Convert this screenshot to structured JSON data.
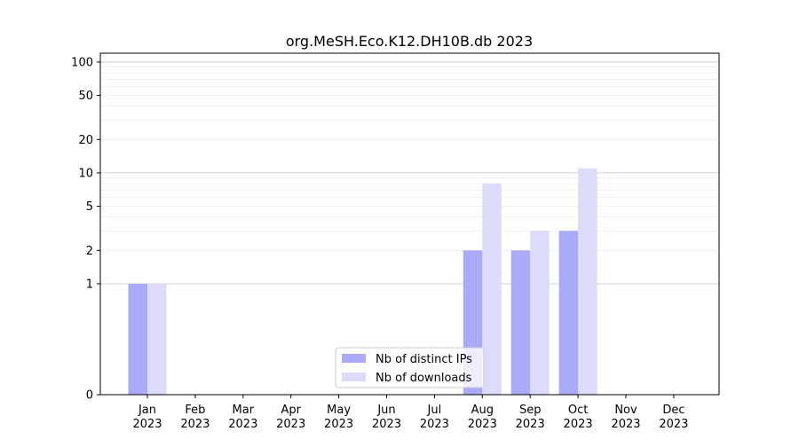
{
  "chart_data": {
    "type": "bar",
    "title": "org.MeSH.Eco.K12.DH10B.db 2023",
    "xlabel": "",
    "ylabel": "",
    "y_scale": "symlog",
    "ylim": [
      0,
      120
    ],
    "y_ticks": [
      0,
      1,
      2,
      5,
      10,
      20,
      50,
      100
    ],
    "y_tick_labels": [
      "0",
      "1",
      "2",
      "5",
      "10",
      "20",
      "50",
      "100"
    ],
    "categories": [
      "Jan\n2023",
      "Feb\n2023",
      "Mar\n2023",
      "Apr\n2023",
      "May\n2023",
      "Jun\n2023",
      "Jul\n2023",
      "Aug\n2023",
      "Sep\n2023",
      "Oct\n2023",
      "Nov\n2023",
      "Dec\n2023"
    ],
    "series": [
      {
        "name": "Nb of distinct IPs",
        "color": "#aaaaf8",
        "values": [
          1,
          0,
          0,
          0,
          0,
          0,
          0,
          2,
          2,
          3,
          0,
          0
        ]
      },
      {
        "name": "Nb of downloads",
        "color": "#dcdcfa",
        "values": [
          1,
          0,
          0,
          0,
          0,
          0,
          0,
          8,
          3,
          11,
          0,
          0
        ]
      }
    ],
    "grid": true,
    "legend_position": "lower-center"
  }
}
